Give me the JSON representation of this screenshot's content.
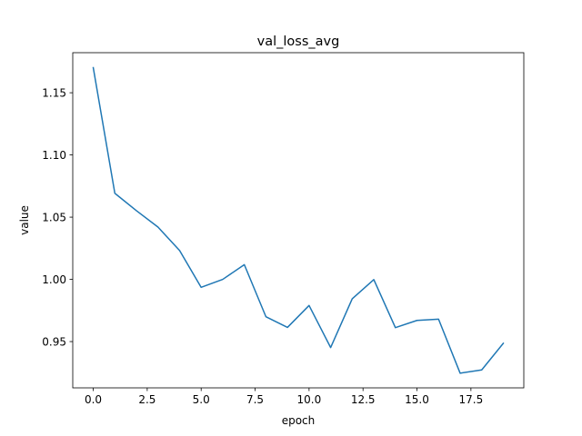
{
  "chart_data": {
    "type": "line",
    "title": "val_loss_avg",
    "xlabel": "epoch",
    "ylabel": "value",
    "xlim": [
      -0.95,
      19.95
    ],
    "ylim": [
      0.9128,
      1.1822
    ],
    "x_ticks": [
      0,
      2.5,
      5,
      7.5,
      10,
      12.5,
      15,
      17.5
    ],
    "x_tick_labels": [
      "0.0",
      "2.5",
      "5.0",
      "7.5",
      "10.0",
      "12.5",
      "15.0",
      "17.5"
    ],
    "y_ticks": [
      0.95,
      1.0,
      1.05,
      1.1,
      1.15
    ],
    "y_tick_labels": [
      "0.95",
      "1.00",
      "1.05",
      "1.10",
      "1.15"
    ],
    "grid": false,
    "series": [
      {
        "color": "#1f77b4",
        "x": [
          0,
          1,
          2,
          3,
          4,
          5,
          6,
          7,
          8,
          9,
          10,
          11,
          12,
          13,
          14,
          15,
          16,
          17,
          18,
          19
        ],
        "y": [
          1.1702,
          1.0692,
          1.0552,
          1.042,
          1.0232,
          0.9936,
          1.0,
          1.0118,
          0.97,
          0.9614,
          0.979,
          0.9452,
          0.9844,
          0.9998,
          0.9612,
          0.967,
          0.968,
          0.9246,
          0.9272,
          0.9486
        ]
      }
    ]
  }
}
